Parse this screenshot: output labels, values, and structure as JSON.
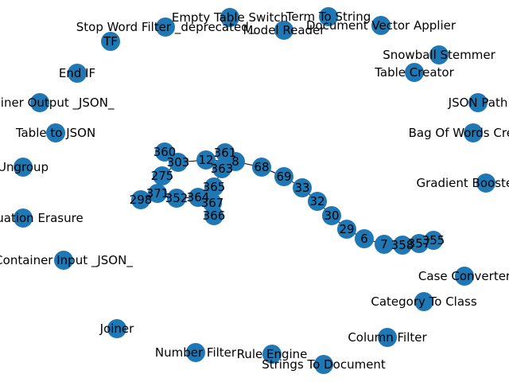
{
  "title": "",
  "colors": {
    "node": "#1f77b4",
    "edge": "#000000",
    "label": "#000000",
    "background": "#ffffff"
  },
  "nodes": [
    {
      "id": "tf",
      "label": "TF"
    },
    {
      "id": "stop-word-filter",
      "label": "Stop Word Filter _deprecated_"
    },
    {
      "id": "empty-table-switch",
      "label": "Empty Table Switch"
    },
    {
      "id": "model-reader",
      "label": "Model Reader"
    },
    {
      "id": "term-to-string",
      "label": "Term To String"
    },
    {
      "id": "document-vector-applier",
      "label": "Document Vector Applier"
    },
    {
      "id": "snowball-stemmer",
      "label": "Snowball Stemmer"
    },
    {
      "id": "end-if",
      "label": "End IF"
    },
    {
      "id": "table-creator",
      "label": "Table Creator"
    },
    {
      "id": "container-output-json",
      "label": "Container Output _JSON_"
    },
    {
      "id": "json-path",
      "label": "JSON Path"
    },
    {
      "id": "table-to-json",
      "label": "Table to JSON"
    },
    {
      "id": "bag-of-words",
      "label": "Bag Of Words Creator"
    },
    {
      "id": "ungroup",
      "label": "Ungroup"
    },
    {
      "id": "gradient-boosted",
      "label": "Gradient Boosted Trees"
    },
    {
      "id": "punctuation-erasure",
      "label": "Punctuation Erasure"
    },
    {
      "id": "container-input-json",
      "label": "Container Input _JSON_"
    },
    {
      "id": "case-converter",
      "label": "Case Converter"
    },
    {
      "id": "category-to-class",
      "label": "Category To Class"
    },
    {
      "id": "joiner",
      "label": "Joiner"
    },
    {
      "id": "column-filter",
      "label": "Column Filter"
    },
    {
      "id": "number-filter",
      "label": "Number Filter"
    },
    {
      "id": "rule-engine",
      "label": "Rule Engine"
    },
    {
      "id": "strings-to-document",
      "label": "Strings To Document"
    },
    {
      "id": "n360",
      "label": "360"
    },
    {
      "id": "n303",
      "label": "303"
    },
    {
      "id": "n12",
      "label": "12"
    },
    {
      "id": "n361",
      "label": "361"
    },
    {
      "id": "n8",
      "label": "8"
    },
    {
      "id": "n363",
      "label": "363"
    },
    {
      "id": "n68",
      "label": "68"
    },
    {
      "id": "n69",
      "label": "69"
    },
    {
      "id": "n33",
      "label": "33"
    },
    {
      "id": "n32",
      "label": "32"
    },
    {
      "id": "n30",
      "label": "30"
    },
    {
      "id": "n29",
      "label": "29"
    },
    {
      "id": "n6",
      "label": "6"
    },
    {
      "id": "n7",
      "label": "7"
    },
    {
      "id": "n358",
      "label": "358"
    },
    {
      "id": "n357",
      "label": "357"
    },
    {
      "id": "n355",
      "label": "355"
    },
    {
      "id": "n275",
      "label": "275"
    },
    {
      "id": "n365",
      "label": "365"
    },
    {
      "id": "n371",
      "label": "371"
    },
    {
      "id": "n352",
      "label": "352"
    },
    {
      "id": "n364",
      "label": "364"
    },
    {
      "id": "n367",
      "label": "367"
    },
    {
      "id": "n298",
      "label": "298"
    },
    {
      "id": "n366",
      "label": "366"
    }
  ],
  "edges": [
    [
      "n360",
      "n303"
    ],
    [
      "n303",
      "n12"
    ],
    [
      "n12",
      "n361"
    ],
    [
      "n12",
      "n8"
    ],
    [
      "n361",
      "n8"
    ],
    [
      "n8",
      "n363"
    ],
    [
      "n8",
      "n68"
    ],
    [
      "n68",
      "n69"
    ],
    [
      "n69",
      "n33"
    ],
    [
      "n33",
      "n32"
    ],
    [
      "n32",
      "n30"
    ],
    [
      "n30",
      "n29"
    ],
    [
      "n29",
      "n6"
    ],
    [
      "n6",
      "n7"
    ],
    [
      "n7",
      "n358"
    ],
    [
      "n358",
      "n357"
    ],
    [
      "n357",
      "n355"
    ],
    [
      "n303",
      "n275"
    ],
    [
      "n275",
      "n371"
    ],
    [
      "n371",
      "n298"
    ],
    [
      "n371",
      "n352"
    ],
    [
      "n352",
      "n364"
    ],
    [
      "n364",
      "n365"
    ],
    [
      "n364",
      "n367"
    ],
    [
      "n367",
      "n366"
    ],
    [
      "n365",
      "n363"
    ]
  ]
}
